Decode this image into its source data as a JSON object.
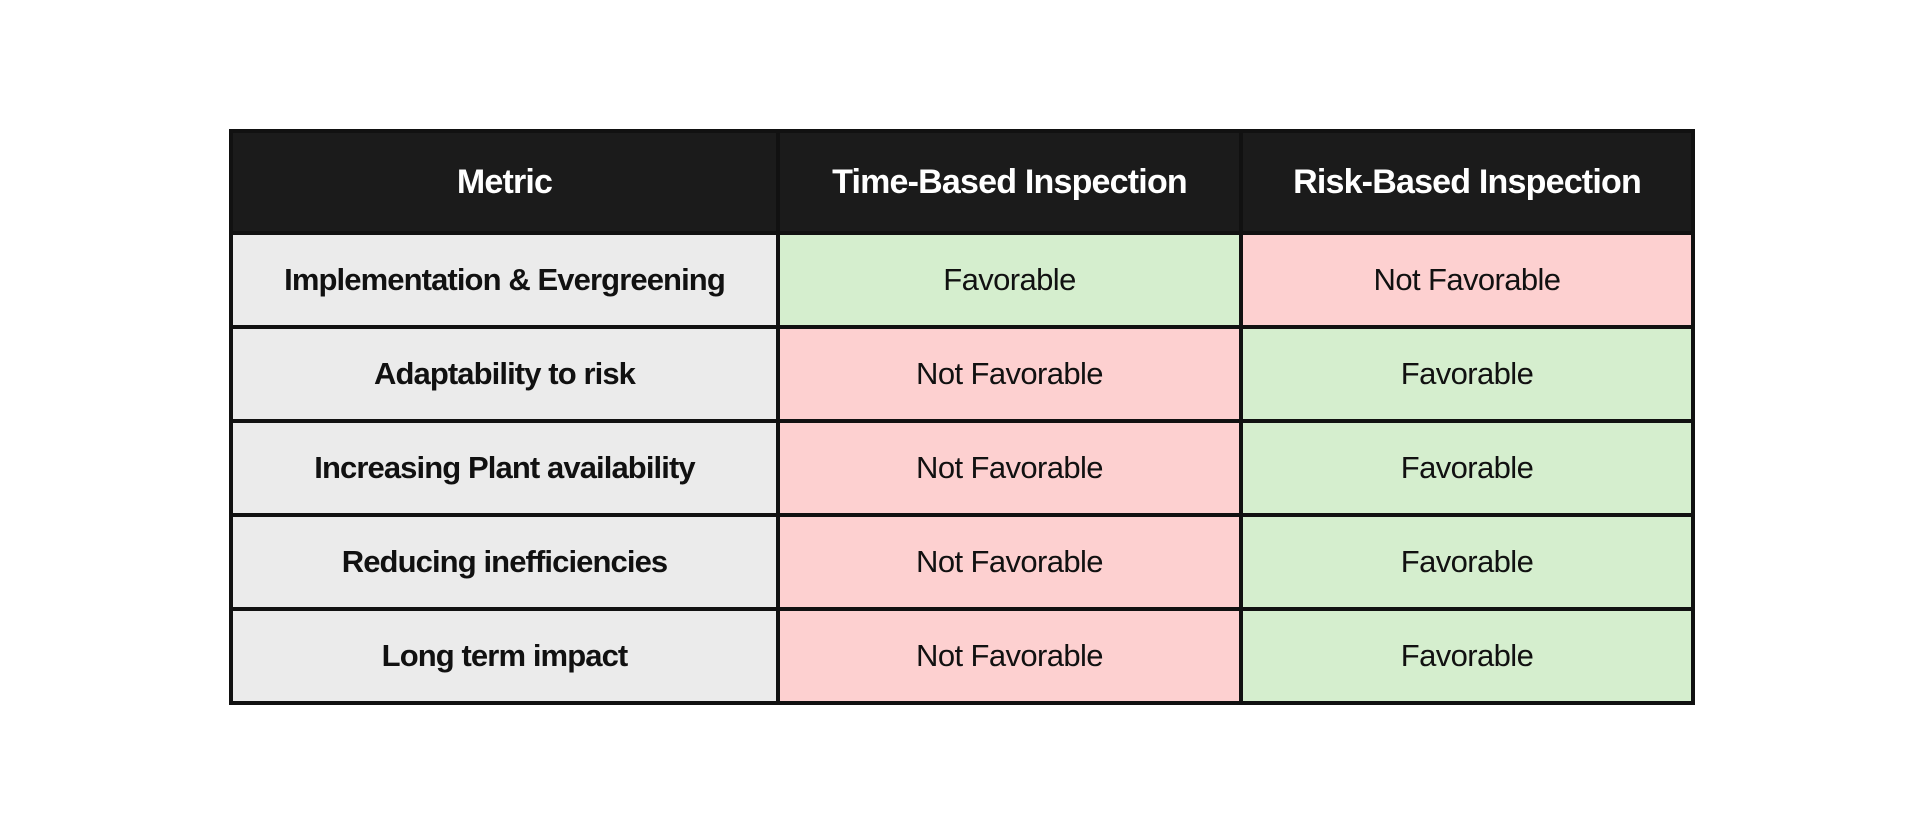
{
  "table": {
    "headers": {
      "metric": "Metric",
      "time_based": "Time-Based Inspection",
      "risk_based": "Risk-Based Inspection"
    },
    "rows": [
      {
        "metric": "Implementation & Evergreening",
        "time_based": "Favorable",
        "risk_based": "Not Favorable"
      },
      {
        "metric": "Adaptability to risk",
        "time_based": "Not Favorable",
        "risk_based": "Favorable"
      },
      {
        "metric": "Increasing Plant availability",
        "time_based": "Not Favorable",
        "risk_based": "Favorable"
      },
      {
        "metric": "Reducing inefficiencies",
        "time_based": "Not Favorable",
        "risk_based": "Favorable"
      },
      {
        "metric": "Long term impact",
        "time_based": "Not Favorable",
        "risk_based": "Favorable"
      }
    ]
  },
  "colors": {
    "favorable": "#d5eece",
    "not_favorable": "#fdd0d0",
    "metric_bg": "#ebebeb",
    "header_bg": "#1b1b1b",
    "border": "#111111"
  }
}
